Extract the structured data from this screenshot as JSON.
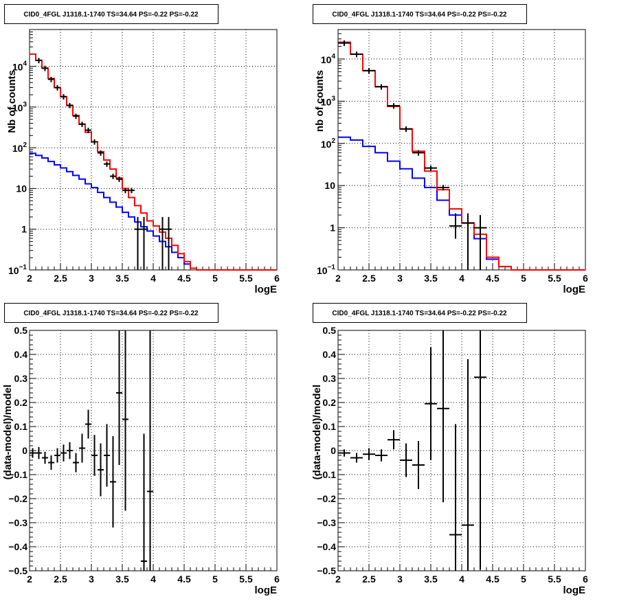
{
  "panels": [
    {
      "title": "CID0_4FGL J1318.1-1740 TS=34.64 PS=-0.22 PS=-0.22",
      "chart_data": {
        "type": "line",
        "log_y": true,
        "xlim": [
          2,
          6
        ],
        "ylim": [
          0.1,
          80000
        ],
        "xlabel": "logE",
        "ylabel": "Nb of counts",
        "x_ticks": [
          2,
          2.5,
          3,
          3.5,
          4,
          4.5,
          5,
          5.5,
          6
        ],
        "x_tick_labels": [
          "2",
          "2.5",
          "3",
          "3.5",
          "4",
          "4.5",
          "5",
          "5.5",
          "6"
        ],
        "y_tick_labels": [
          {
            "v": 0.1,
            "base": "10",
            "exp": "−1"
          },
          {
            "v": 1,
            "text": "1"
          },
          {
            "v": 10,
            "text": "10"
          },
          {
            "v": 100,
            "base": "10",
            "exp": "2"
          },
          {
            "v": 1000,
            "base": "10",
            "exp": "3"
          },
          {
            "v": 10000,
            "base": "10",
            "exp": "4"
          }
        ],
        "grid": true,
        "series": [
          {
            "color": "#0000ff",
            "bin_edges": [
              2,
              2.1,
              2.2,
              2.3,
              2.4,
              2.5,
              2.6,
              2.7,
              2.8,
              2.9,
              3,
              3.1,
              3.2,
              3.3,
              3.4,
              3.5,
              3.6,
              3.7,
              3.8,
              3.9,
              4,
              4.1,
              4.2,
              4.3,
              4.4,
              4.5,
              4.6,
              4.7,
              6
            ],
            "values": [
              73,
              65,
              56,
              46,
              38,
              32,
              26,
              21,
              17,
              13,
              10.5,
              8,
              6,
              4.6,
              3.5,
              2.6,
              2,
              1.5,
              1.15,
              0.9,
              0.68,
              0.5,
              0.37,
              0.27,
              0.2,
              0.14,
              0.11,
              0.1
            ]
          },
          {
            "color": "#ff0000",
            "bin_edges": [
              2,
              2.1,
              2.2,
              2.3,
              2.4,
              2.5,
              2.6,
              2.7,
              2.8,
              2.9,
              3,
              3.1,
              3.2,
              3.3,
              3.4,
              3.5,
              3.6,
              3.7,
              3.8,
              3.9,
              4,
              4.1,
              4.2,
              4.3,
              4.4,
              4.5,
              4.6,
              4.7,
              6
            ],
            "values": [
              20000,
              14000,
              9000,
              5000,
              3000,
              1800,
              1100,
              620,
              380,
              240,
              140,
              80,
              50,
              30,
              18,
              10,
              6,
              3.8,
              2.5,
              1.6,
              1.2,
              0.85,
              0.6,
              0.4,
              0.25,
              0.16,
              0.11,
              0.1
            ]
          }
        ],
        "points": [
          {
            "x": 2.15,
            "xerr": 0.05,
            "y": 14000
          },
          {
            "x": 2.25,
            "xerr": 0.05,
            "y": 9000
          },
          {
            "x": 2.35,
            "xerr": 0.05,
            "y": 4800
          },
          {
            "x": 2.45,
            "xerr": 0.05,
            "y": 3000
          },
          {
            "x": 2.55,
            "xerr": 0.05,
            "y": 1800
          },
          {
            "x": 2.65,
            "xerr": 0.05,
            "y": 1100
          },
          {
            "x": 2.75,
            "xerr": 0.05,
            "y": 600
          },
          {
            "x": 2.85,
            "xerr": 0.05,
            "y": 380
          },
          {
            "x": 2.95,
            "xerr": 0.05,
            "y": 270
          },
          {
            "x": 3.05,
            "xerr": 0.05,
            "y": 140
          },
          {
            "x": 3.15,
            "xerr": 0.05,
            "y": 75
          },
          {
            "x": 3.25,
            "xerr": 0.05,
            "y": 40
          },
          {
            "x": 3.35,
            "xerr": 0.05,
            "y": 20
          },
          {
            "x": 3.45,
            "xerr": 0.05,
            "y": 17
          },
          {
            "x": 3.55,
            "xerr": 0.05,
            "y": 9
          },
          {
            "x": 3.65,
            "xerr": 0.05,
            "y": 9
          },
          {
            "x": 3.75,
            "xerr": 0.05,
            "y": 1,
            "ylo": 0.1,
            "yhi": 2
          },
          {
            "x": 3.85,
            "xerr": 0.05,
            "y": 1,
            "ylo": 0.1,
            "yhi": 2
          },
          {
            "x": 4.15,
            "xerr": 0.05,
            "y": 1,
            "ylo": 0.1,
            "yhi": 2
          },
          {
            "x": 4.25,
            "xerr": 0.05,
            "y": 1,
            "ylo": 0.1,
            "yhi": 2
          }
        ]
      }
    },
    {
      "title": "CID0_4FGL J1318.1-1740 TS=34.64 PS=-0.22 PS=-0.22",
      "chart_data": {
        "type": "line",
        "log_y": true,
        "xlim": [
          2,
          6
        ],
        "ylim": [
          0.1,
          50000
        ],
        "xlabel": "logE",
        "ylabel": "nb of counts",
        "x_ticks": [
          2,
          2.5,
          3,
          3.5,
          4,
          4.5,
          5,
          5.5,
          6
        ],
        "x_tick_labels": [
          "2",
          "2.5",
          "3",
          "3.5",
          "4",
          "4.5",
          "5",
          "5.5",
          "6"
        ],
        "y_tick_labels": [
          {
            "v": 0.1,
            "base": "10",
            "exp": "−1"
          },
          {
            "v": 1,
            "text": "1"
          },
          {
            "v": 10,
            "text": "10"
          },
          {
            "v": 100,
            "base": "10",
            "exp": "2"
          },
          {
            "v": 1000,
            "base": "10",
            "exp": "3"
          },
          {
            "v": 10000,
            "base": "10",
            "exp": "4"
          }
        ],
        "grid": true,
        "series": [
          {
            "color": "#0000ff",
            "bin_edges": [
              2,
              2.2,
              2.4,
              2.6,
              2.8,
              3,
              3.2,
              3.4,
              3.6,
              3.8,
              4,
              4.2,
              4.4,
              4.6,
              4.8,
              6
            ],
            "values": [
              140,
              120,
              85,
              60,
              38,
              25,
              15,
              9,
              4.5,
              2,
              1.3,
              0.55,
              0.18,
              0.12,
              0.1
            ]
          },
          {
            "color": "#ff0000",
            "bin_edges": [
              2,
              2.2,
              2.4,
              2.6,
              2.8,
              3,
              3.2,
              3.4,
              3.6,
              3.8,
              4,
              4.2,
              4.4,
              4.6,
              4.8,
              6
            ],
            "values": [
              25000,
              13000,
              5300,
              2200,
              750,
              220,
              65,
              22,
              8,
              2.8,
              1.3,
              0.7,
              0.2,
              0.12,
              0.1
            ]
          }
        ],
        "points": [
          {
            "x": 2.1,
            "xerr": 0.1,
            "y": 24000
          },
          {
            "x": 2.3,
            "xerr": 0.1,
            "y": 13000
          },
          {
            "x": 2.5,
            "xerr": 0.1,
            "y": 5300
          },
          {
            "x": 2.7,
            "xerr": 0.1,
            "y": 2200
          },
          {
            "x": 2.9,
            "xerr": 0.1,
            "y": 780
          },
          {
            "x": 3.1,
            "xerr": 0.1,
            "y": 220
          },
          {
            "x": 3.3,
            "xerr": 0.1,
            "y": 60
          },
          {
            "x": 3.5,
            "xerr": 0.1,
            "y": 26
          },
          {
            "x": 3.7,
            "xerr": 0.1,
            "y": 9
          },
          {
            "x": 3.9,
            "xerr": 0.1,
            "y": 1.1,
            "ylo": 0.55,
            "yhi": 2.2
          },
          {
            "x": 4.1,
            "xerr": 0.1,
            "y": 1.3,
            "ylo": 0.1,
            "yhi": 2.2
          },
          {
            "x": 4.3,
            "xerr": 0.1,
            "y": 1,
            "ylo": 0.1,
            "yhi": 2
          }
        ]
      }
    },
    {
      "title": "CID0_4FGL J1318.1-1740 TS=34.64 PS=-0.22 PS=-0.22",
      "chart_data": {
        "type": "scatter",
        "log_y": false,
        "xlim": [
          2,
          6
        ],
        "ylim": [
          -0.5,
          0.5
        ],
        "xlabel": "logE",
        "ylabel": "(data-model)/model",
        "x_ticks": [
          2,
          2.5,
          3,
          3.5,
          4,
          4.5,
          5,
          5.5,
          6
        ],
        "x_tick_labels": [
          "2",
          "2.5",
          "3",
          "3.5",
          "4",
          "4.5",
          "5",
          "5.5",
          "6"
        ],
        "y_ticks": [
          -0.5,
          -0.4,
          -0.3,
          -0.2,
          -0.1,
          0,
          0.1,
          0.2,
          0.3,
          0.4,
          0.5
        ],
        "y_tick_labels": [
          "−0.5",
          "−0.4",
          "−0.3",
          "−0.2",
          "−0.1",
          "0",
          "0.1",
          "0.2",
          "0.3",
          "0.4",
          "0.5"
        ],
        "grid": true,
        "series": [],
        "points": [
          {
            "x": 2.05,
            "xerr": 0.05,
            "y": -0.01,
            "yerr": 0.02
          },
          {
            "x": 2.15,
            "xerr": 0.05,
            "y": -0.01,
            "yerr": 0.025
          },
          {
            "x": 2.25,
            "xerr": 0.05,
            "y": -0.03,
            "yerr": 0.025
          },
          {
            "x": 2.35,
            "xerr": 0.05,
            "y": -0.05,
            "yerr": 0.03
          },
          {
            "x": 2.45,
            "xerr": 0.05,
            "y": -0.02,
            "yerr": 0.03
          },
          {
            "x": 2.55,
            "xerr": 0.05,
            "y": -0.01,
            "yerr": 0.035
          },
          {
            "x": 2.65,
            "xerr": 0.05,
            "y": 0,
            "yerr": 0.035
          },
          {
            "x": 2.75,
            "xerr": 0.05,
            "y": -0.05,
            "yerr": 0.04
          },
          {
            "x": 2.85,
            "xerr": 0.05,
            "y": 0.01,
            "yerr": 0.06
          },
          {
            "x": 2.95,
            "xerr": 0.05,
            "y": 0.11,
            "yerr": 0.06
          },
          {
            "x": 3.05,
            "xerr": 0.05,
            "y": -0.02,
            "yerr": 0.085
          },
          {
            "x": 3.15,
            "xerr": 0.05,
            "y": -0.08,
            "yerr": 0.11
          },
          {
            "x": 3.25,
            "xerr": 0.05,
            "y": -0.02,
            "yerr": 0.13
          },
          {
            "x": 3.35,
            "xerr": 0.05,
            "y": -0.13,
            "yerr": 0.19
          },
          {
            "x": 3.45,
            "xerr": 0.05,
            "y": 0.24,
            "yerr": 0.3
          },
          {
            "x": 3.55,
            "xerr": 0.05,
            "y": 0.13,
            "yerr": 0.38
          },
          {
            "x": 3.85,
            "xerr": 0.05,
            "y": -0.46,
            "yerr": 0.53
          },
          {
            "x": 3.95,
            "xerr": 0.05,
            "y": -0.17,
            "yerr": 0.67
          }
        ]
      }
    },
    {
      "title": "CID0_4FGL J1318.1-1740 TS=34.64 PS=-0.22 PS=-0.22",
      "chart_data": {
        "type": "scatter",
        "log_y": false,
        "xlim": [
          2,
          6
        ],
        "ylim": [
          -0.5,
          0.5
        ],
        "xlabel": "logE",
        "ylabel": "(data-model)/model",
        "x_ticks": [
          2,
          2.5,
          3,
          3.5,
          4,
          4.5,
          5,
          5.5,
          6
        ],
        "x_tick_labels": [
          "2",
          "2.5",
          "3",
          "3.5",
          "4",
          "4.5",
          "5",
          "5.5",
          "6"
        ],
        "y_ticks": [
          -0.5,
          -0.4,
          -0.3,
          -0.2,
          -0.1,
          0,
          0.1,
          0.2,
          0.3,
          0.4,
          0.5
        ],
        "y_tick_labels": [
          "−0.5",
          "−0.4",
          "−0.3",
          "−0.2",
          "−0.1",
          "0",
          "0.1",
          "0.2",
          "0.3",
          "0.4",
          "0.5"
        ],
        "grid": true,
        "series": [],
        "points": [
          {
            "x": 2.1,
            "xerr": 0.1,
            "y": -0.01,
            "yerr": 0.015
          },
          {
            "x": 2.3,
            "xerr": 0.1,
            "y": -0.03,
            "yerr": 0.02
          },
          {
            "x": 2.5,
            "xerr": 0.1,
            "y": -0.015,
            "yerr": 0.025
          },
          {
            "x": 2.7,
            "xerr": 0.1,
            "y": -0.02,
            "yerr": 0.025
          },
          {
            "x": 2.9,
            "xerr": 0.1,
            "y": 0.045,
            "yerr": 0.04
          },
          {
            "x": 3.1,
            "xerr": 0.1,
            "y": -0.04,
            "yerr": 0.07
          },
          {
            "x": 3.3,
            "xerr": 0.1,
            "y": -0.06,
            "yerr": 0.1
          },
          {
            "x": 3.5,
            "xerr": 0.1,
            "y": 0.195,
            "yerr": 0.235
          },
          {
            "x": 3.7,
            "xerr": 0.1,
            "y": 0.175,
            "yerr": 0.39
          },
          {
            "x": 3.9,
            "xerr": 0.1,
            "y": -0.35,
            "yerr": 0.46
          },
          {
            "x": 4.1,
            "xerr": 0.1,
            "y": -0.31,
            "yerr": 0.69
          },
          {
            "x": 4.3,
            "xerr": 0.1,
            "y": 0.305,
            "yerr": 0.8
          }
        ]
      }
    }
  ]
}
